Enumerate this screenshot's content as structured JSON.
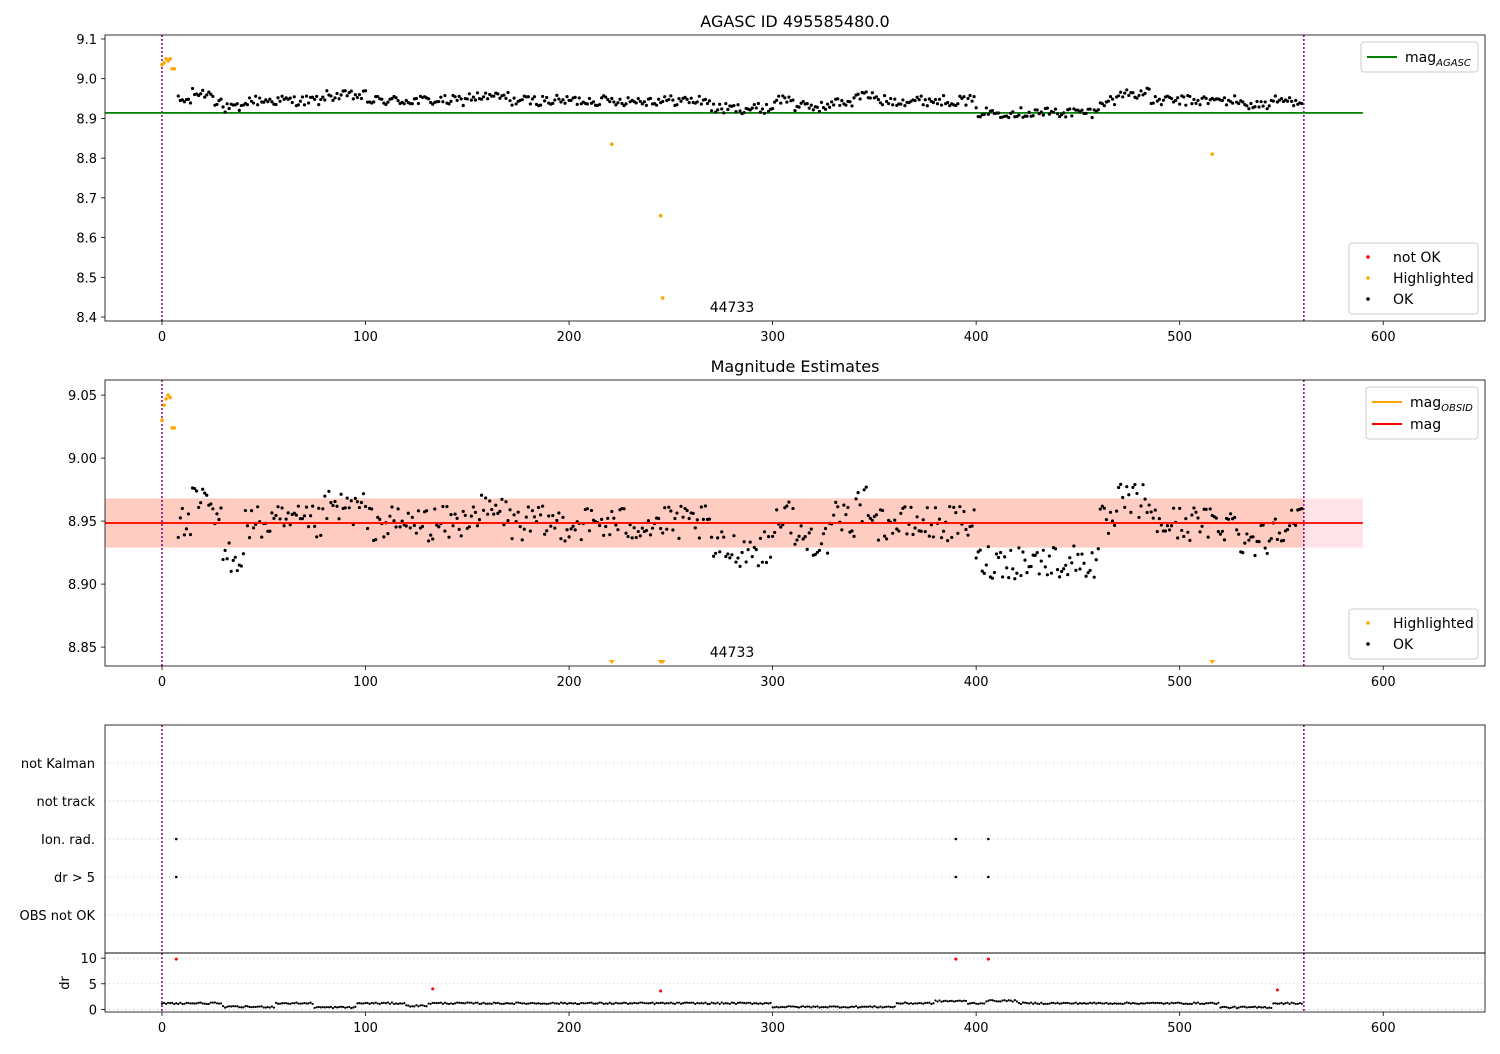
{
  "colors": {
    "ok": "#000000",
    "highlighted": "#ffa500",
    "not_ok": "#ff0000",
    "agasc_line": "#008000",
    "mag_line": "#ff0000",
    "obsid_line": "#ffa500",
    "band_pink": "#ffc0cb",
    "band_orange": "#ffa07a",
    "obs_boundary": "#800080"
  },
  "chart_data": [
    {
      "type": "scatter",
      "title": "AGASC ID 495585480.0",
      "xlabel": "",
      "ylabel": "",
      "xlim": [
        -28,
        650
      ],
      "ylim": [
        8.39,
        9.11
      ],
      "xticks": [
        0,
        100,
        200,
        300,
        400,
        500,
        600
      ],
      "yticks": [
        8.4,
        8.5,
        8.6,
        8.7,
        8.8,
        8.9,
        9.0,
        9.1
      ],
      "ytick_decimals": 1,
      "grid": false,
      "reference_lines": [
        {
          "name": "mag_AGASC",
          "y": 8.914,
          "x_range": [
            -28,
            590
          ],
          "color": "#008000"
        }
      ],
      "vertical_lines": [
        0,
        561
      ],
      "observation_labels": [
        {
          "text": "44733",
          "x": 280
        }
      ],
      "legend_lines": [
        {
          "label": "mag",
          "sub": "AGASC",
          "color": "#008000"
        }
      ],
      "legend_markers": [
        {
          "label": "not OK",
          "color": "#ff0000"
        },
        {
          "label": "Highlighted",
          "color": "#ffa500"
        },
        {
          "label": "OK",
          "color": "#000000"
        }
      ],
      "series_highlighted": {
        "name": "Highlighted",
        "points": [
          [
            0,
            9.035
          ],
          [
            1,
            9.04
          ],
          [
            2,
            9.05
          ],
          [
            3,
            9.045
          ],
          [
            4,
            9.05
          ],
          [
            5,
            9.025
          ],
          [
            6,
            9.025
          ],
          [
            221,
            8.835
          ],
          [
            245,
            8.655
          ],
          [
            246,
            8.448
          ],
          [
            516,
            8.81
          ]
        ]
      },
      "ok_model": {
        "x_start": 8,
        "x_end": 560,
        "base": 8.945,
        "dips": [
          [
            30,
            40,
            -0.02
          ],
          [
            270,
            300,
            -0.02
          ],
          [
            300,
            340,
            -0.015
          ],
          [
            400,
            460,
            -0.03
          ],
          [
            530,
            545,
            -0.01
          ]
        ],
        "bumps": [
          [
            15,
            25,
            0.03
          ],
          [
            80,
            100,
            0.02
          ],
          [
            150,
            170,
            0.015
          ],
          [
            300,
            310,
            0.03
          ],
          [
            330,
            350,
            0.02
          ],
          [
            470,
            485,
            0.03
          ]
        ],
        "noise": 0.013
      }
    },
    {
      "type": "scatter",
      "title": "Magnitude Estimates",
      "xlabel": "",
      "ylabel": "",
      "xlim": [
        -28,
        650
      ],
      "ylim": [
        8.835,
        9.062
      ],
      "xticks": [
        0,
        100,
        200,
        300,
        400,
        500,
        600
      ],
      "yticks": [
        8.85,
        8.9,
        8.95,
        9.0,
        9.05
      ],
      "ytick_decimals": 2,
      "grid": false,
      "reference_lines": [
        {
          "name": "mag_OBSID",
          "y": 8.9485,
          "x_range": [
            -28,
            561
          ],
          "color": "#ffa500"
        },
        {
          "name": "mag",
          "y": 8.9485,
          "x_range": [
            -28,
            590
          ],
          "color": "#ff0000"
        }
      ],
      "bands": [
        {
          "y": [
            8.929,
            8.968
          ],
          "x_range": [
            -28,
            590
          ],
          "color": "#ffc0cb"
        },
        {
          "y": [
            8.929,
            8.968
          ],
          "x_range": [
            -28,
            561
          ],
          "color": "#ffa07a"
        }
      ],
      "vertical_lines": [
        0,
        561
      ],
      "observation_labels": [
        {
          "text": "44733",
          "x": 280
        }
      ],
      "legend_lines": [
        {
          "label": "mag",
          "sub": "OBSID",
          "color": "#ffa500"
        },
        {
          "label": "mag",
          "sub": "",
          "color": "#ff0000"
        }
      ],
      "legend_markers": [
        {
          "label": "Highlighted",
          "color": "#ffa500"
        },
        {
          "label": "OK",
          "color": "#000000"
        }
      ],
      "series_highlighted": {
        "name": "Highlighted",
        "points": [
          [
            0,
            9.03
          ],
          [
            1,
            9.042
          ],
          [
            2,
            9.047
          ],
          [
            3,
            9.05
          ],
          [
            4,
            9.048
          ],
          [
            5,
            9.024
          ],
          [
            6,
            9.024
          ]
        ]
      },
      "clipped_markers": [
        221,
        245,
        246,
        516
      ],
      "ok_model": {
        "x_start": 8,
        "x_end": 560,
        "base": 8.948,
        "dips": [
          [
            30,
            40,
            -0.025
          ],
          [
            270,
            300,
            -0.02
          ],
          [
            300,
            340,
            -0.012
          ],
          [
            400,
            460,
            -0.03
          ],
          [
            530,
            545,
            -0.012
          ]
        ],
        "bumps": [
          [
            15,
            25,
            0.025
          ],
          [
            80,
            100,
            0.02
          ],
          [
            150,
            170,
            0.015
          ],
          [
            300,
            310,
            0.03
          ],
          [
            330,
            350,
            0.025
          ],
          [
            470,
            485,
            0.03
          ]
        ],
        "noise": 0.014
      }
    },
    {
      "type": "scatter",
      "title": "",
      "xlabel": "",
      "ylabel": "",
      "xlim": [
        -28,
        650
      ],
      "ylim": [
        0,
        6
      ],
      "categories": [
        "OBS not OK",
        "dr > 5",
        "Ion. rad.",
        "not track",
        "not Kalman"
      ],
      "grid": true,
      "vertical_lines": [
        0,
        561
      ],
      "flags": [
        {
          "category": "Ion. rad.",
          "x": [
            7,
            390,
            406
          ]
        },
        {
          "category": "dr > 5",
          "x": [
            7,
            390,
            406
          ]
        }
      ]
    },
    {
      "type": "scatter",
      "title": "",
      "xlabel": "",
      "ylabel": "dr",
      "xlim": [
        -28,
        650
      ],
      "ylim": [
        -0.5,
        11
      ],
      "xticks": [
        0,
        100,
        200,
        300,
        400,
        500,
        600
      ],
      "yticks": [
        0,
        5,
        10
      ],
      "grid": true,
      "vertical_lines": [
        0,
        561
      ],
      "series_not_ok": {
        "name": "not OK",
        "points": [
          [
            7,
            9.8
          ],
          [
            133,
            4.0
          ],
          [
            245,
            3.6
          ],
          [
            390,
            9.8
          ],
          [
            406,
            9.8
          ],
          [
            548,
            3.8
          ]
        ]
      },
      "ok_model": {
        "x_start": 0,
        "x_end": 560,
        "base": 1.2,
        "dips": [
          [
            30,
            55,
            -0.7
          ],
          [
            75,
            95,
            -0.8
          ],
          [
            120,
            130,
            -0.5
          ],
          [
            300,
            360,
            -0.7
          ],
          [
            520,
            545,
            -0.8
          ]
        ],
        "bumps": [
          [
            380,
            395,
            0.7
          ],
          [
            405,
            420,
            0.8
          ]
        ],
        "noise": 0.15
      }
    }
  ]
}
